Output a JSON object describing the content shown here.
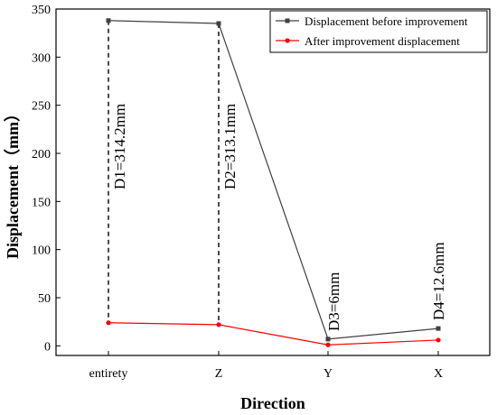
{
  "chart_data": {
    "type": "line",
    "categories": [
      "entirety",
      "Z",
      "Y",
      "X"
    ],
    "xlabel": "Direction",
    "ylabel": "Displacement（mm）",
    "ylim": [
      -10,
      350
    ],
    "yticks": [
      0,
      50,
      100,
      150,
      200,
      250,
      300,
      350
    ],
    "grid": false,
    "legend_position": "top-right",
    "series": [
      {
        "name": "Displacement before improvement",
        "values": [
          338,
          335,
          7,
          18
        ],
        "color": "#404040",
        "marker": "square"
      },
      {
        "name": "After improvement displacement",
        "values": [
          24,
          22,
          1,
          6
        ],
        "color": "#ff0000",
        "marker": "circle"
      }
    ],
    "annotations": [
      {
        "text": "D1=314.2mm",
        "category": "entirety",
        "from": 24,
        "to": 338,
        "dashed": true
      },
      {
        "text": "D2=313.1mm",
        "category": "Z",
        "from": 22,
        "to": 335,
        "dashed": true
      },
      {
        "text": "D3=6mm",
        "category": "Y",
        "from": 1,
        "to": 7,
        "dashed": false
      },
      {
        "text": "D4=12.6mm",
        "category": "X",
        "from": 6,
        "to": 18,
        "dashed": false
      }
    ]
  }
}
